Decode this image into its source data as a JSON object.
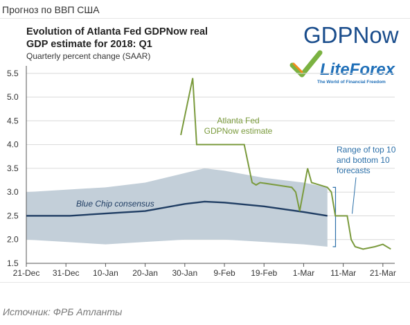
{
  "page": {
    "heading": "Прогноз по ВВП США",
    "source": "Источник: ФРБ Атланты"
  },
  "logos": {
    "gdpnow": "GDPNow",
    "liteforex": "LiteForex",
    "liteforex_tagline": "The World of Financial Freedom",
    "gdpnow_color": "#1a4d8c",
    "liteforex_color": "#1f6fb8",
    "liteforex_check_color": "#7bb241"
  },
  "chart_data": {
    "type": "line",
    "title": "Evolution of Atlanta Fed GDPNow real GDP estimate for 2018: Q1",
    "title_lines": [
      "Evolution of Atlanta Fed GDPNow real",
      "GDP estimate for 2018: Q1"
    ],
    "subtitle": "Quarterly percent change (SAAR)",
    "xlabel": "",
    "ylabel": "",
    "x_tick_labels": [
      "21-Dec",
      "31-Dec",
      "10-Jan",
      "20-Jan",
      "30-Jan",
      "9-Feb",
      "19-Feb",
      "1-Mar",
      "11-Mar",
      "21-Mar"
    ],
    "x_tick_dates": [
      "2017-12-21",
      "2017-12-31",
      "2018-01-10",
      "2018-01-20",
      "2018-01-30",
      "2018-02-09",
      "2018-02-19",
      "2018-03-01",
      "2018-03-11",
      "2018-03-21"
    ],
    "xlim": [
      "2017-12-21",
      "2018-03-24"
    ],
    "ylim": [
      1.5,
      5.6
    ],
    "y_ticks": [
      "1.5",
      "2.0",
      "2.5",
      "3.0",
      "3.5",
      "4.0",
      "4.5",
      "5.0",
      "5.5"
    ],
    "grid": "horizontal",
    "colors": {
      "gdpnow": "#7a9a3c",
      "blue_chip": "#1f3d63",
      "range_band": "#c3cfd9",
      "annotation": "#2b6fa8"
    },
    "series": [
      {
        "name": "Atlanta Fed GDPNow estimate",
        "label_lines": [
          "Atlanta Fed",
          "GDPNow estimate"
        ],
        "points": [
          [
            "2018-01-29",
            4.2
          ],
          [
            "2018-02-01",
            5.4
          ],
          [
            "2018-02-02",
            4.0
          ],
          [
            "2018-02-08",
            4.0
          ],
          [
            "2018-02-14",
            4.0
          ],
          [
            "2018-02-16",
            3.2
          ],
          [
            "2018-02-17",
            3.15
          ],
          [
            "2018-02-18",
            3.2
          ],
          [
            "2018-02-22",
            3.15
          ],
          [
            "2018-02-26",
            3.1
          ],
          [
            "2018-02-27",
            3.0
          ],
          [
            "2018-02-28",
            2.6
          ],
          [
            "2018-03-02",
            3.5
          ],
          [
            "2018-03-03",
            3.2
          ],
          [
            "2018-03-07",
            3.1
          ],
          [
            "2018-03-08",
            3.0
          ],
          [
            "2018-03-09",
            2.5
          ],
          [
            "2018-03-12",
            2.5
          ],
          [
            "2018-03-13",
            2.0
          ],
          [
            "2018-03-14",
            1.85
          ],
          [
            "2018-03-16",
            1.8
          ],
          [
            "2018-03-19",
            1.85
          ],
          [
            "2018-03-21",
            1.9
          ],
          [
            "2018-03-23",
            1.8
          ]
        ]
      },
      {
        "name": "Blue Chip consensus",
        "points": [
          [
            "2017-12-21",
            2.5
          ],
          [
            "2018-01-01",
            2.5
          ],
          [
            "2018-01-10",
            2.55
          ],
          [
            "2018-01-20",
            2.6
          ],
          [
            "2018-01-30",
            2.75
          ],
          [
            "2018-02-04",
            2.8
          ],
          [
            "2018-02-09",
            2.78
          ],
          [
            "2018-02-19",
            2.7
          ],
          [
            "2018-03-01",
            2.58
          ],
          [
            "2018-03-07",
            2.5
          ]
        ]
      }
    ],
    "range_band": {
      "name": "Range of top 10 and bottom 10 forecasts",
      "label_lines": [
        "Range of top 10",
        "and bottom 10",
        "forecasts"
      ],
      "upper": [
        [
          "2017-12-21",
          3.0
        ],
        [
          "2017-12-31",
          3.05
        ],
        [
          "2018-01-10",
          3.1
        ],
        [
          "2018-01-20",
          3.2
        ],
        [
          "2018-01-30",
          3.4
        ],
        [
          "2018-02-04",
          3.5
        ],
        [
          "2018-02-09",
          3.45
        ],
        [
          "2018-02-19",
          3.3
        ],
        [
          "2018-03-01",
          3.2
        ],
        [
          "2018-03-07",
          3.1
        ]
      ],
      "lower": [
        [
          "2017-12-21",
          2.0
        ],
        [
          "2017-12-31",
          1.95
        ],
        [
          "2018-01-10",
          1.9
        ],
        [
          "2018-01-20",
          1.95
        ],
        [
          "2018-01-30",
          2.0
        ],
        [
          "2018-02-09",
          2.0
        ],
        [
          "2018-02-19",
          1.95
        ],
        [
          "2018-03-01",
          1.9
        ],
        [
          "2018-03-07",
          1.85
        ]
      ],
      "bracket_date": "2018-03-08"
    }
  }
}
